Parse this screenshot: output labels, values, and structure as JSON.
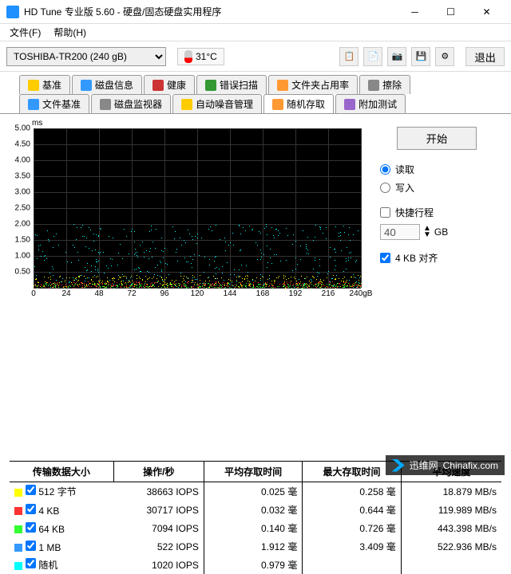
{
  "window": {
    "title": "HD Tune 专业版 5.60 - 硬盘/固态硬盘实用程序"
  },
  "menu": {
    "file": "文件(F)",
    "help": "帮助(H)"
  },
  "toolbar": {
    "drive": "TOSHIBA-TR200 (240 gB)",
    "temperature": "31°C",
    "exit": "退出"
  },
  "tabs": {
    "row1": [
      {
        "label": "基准",
        "icon": "ic-yellow"
      },
      {
        "label": "磁盘信息",
        "icon": "ic-blue"
      },
      {
        "label": "健康",
        "icon": "ic-red"
      },
      {
        "label": "错误扫描",
        "icon": "ic-green"
      },
      {
        "label": "文件夹占用率",
        "icon": "ic-orange"
      },
      {
        "label": "擦除",
        "icon": "ic-gray"
      }
    ],
    "row2": [
      {
        "label": "文件基准",
        "icon": "ic-blue"
      },
      {
        "label": "磁盘监视器",
        "icon": "ic-gray"
      },
      {
        "label": "自动噪音管理",
        "icon": "ic-yellow"
      },
      {
        "label": "随机存取",
        "icon": "ic-orange",
        "active": true
      },
      {
        "label": "附加测试",
        "icon": "ic-purple"
      }
    ]
  },
  "chart": {
    "ylabel": "ms",
    "yticks": [
      "5.00",
      "4.50",
      "4.00",
      "3.50",
      "3.00",
      "2.50",
      "2.00",
      "1.50",
      "1.00",
      "0.50"
    ],
    "ylim": [
      0,
      5.0
    ],
    "xticks": [
      "0",
      "24",
      "48",
      "72",
      "96",
      "120",
      "144",
      "168",
      "192",
      "216",
      "240gB"
    ],
    "bg": "#000000",
    "grid": "#333333",
    "scatter_bands": [
      {
        "top_pct": 60,
        "height_pct": 40,
        "color": "#00ffff",
        "density": 1.0
      },
      {
        "top_pct": 92,
        "height_pct": 8,
        "color": "#ffff00",
        "density": 0.9
      },
      {
        "top_pct": 96,
        "height_pct": 4,
        "color": "#ff3333",
        "density": 0.8
      },
      {
        "top_pct": 97,
        "height_pct": 3,
        "color": "#33ff33",
        "density": 0.8
      }
    ]
  },
  "side": {
    "start": "开始",
    "read": "读取",
    "write": "写入",
    "express": "快捷行程",
    "express_value": "40",
    "express_unit": "GB",
    "align": "4 KB 对齐"
  },
  "results": {
    "headers": [
      "传输数据大小",
      "操作/秒",
      "平均存取时间",
      "最大存取时间",
      "平均速度"
    ],
    "rows": [
      {
        "color": "#ffff00",
        "size": "512 字节",
        "iops": "38663 IOPS",
        "avg": "0.025 毫",
        "max": "0.258 毫",
        "speed": "18.879 MB/s"
      },
      {
        "color": "#ff3333",
        "size": "4 KB",
        "iops": "30717 IOPS",
        "avg": "0.032 毫",
        "max": "0.644 毫",
        "speed": "119.989 MB/s"
      },
      {
        "color": "#33ff33",
        "size": "64 KB",
        "iops": "7094 IOPS",
        "avg": "0.140 毫",
        "max": "0.726 毫",
        "speed": "443.398 MB/s"
      },
      {
        "color": "#3399ff",
        "size": "1 MB",
        "iops": "522 IOPS",
        "avg": "1.912 毫",
        "max": "3.409 毫",
        "speed": "522.936 MB/s"
      },
      {
        "color": "#00ffff",
        "size": "随机",
        "iops": "1020 IOPS",
        "avg": "0.979 毫",
        "max": "",
        "speed": ""
      }
    ]
  },
  "watermark": {
    "text1": "迅维网",
    "text2": "Chinafix.com"
  }
}
